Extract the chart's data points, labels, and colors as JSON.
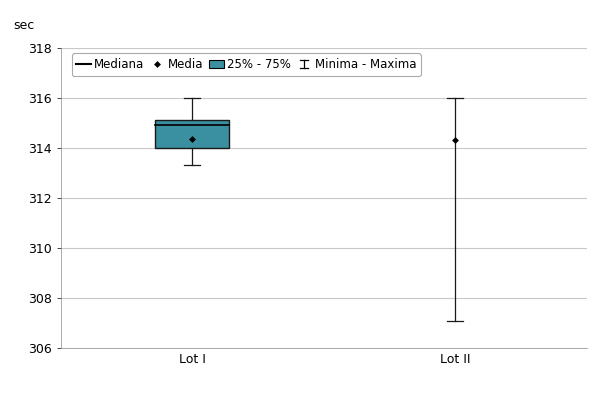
{
  "categories": [
    "Lot I",
    "Lot II"
  ],
  "lot1": {
    "q1": 314.0,
    "median": 314.9,
    "q3": 315.1,
    "mean": 314.35,
    "min": 313.3,
    "max": 316.0
  },
  "lot2": {
    "q1": 314.3,
    "median": 314.3,
    "q3": 314.3,
    "mean": 314.3,
    "min": 307.1,
    "max": 316.0
  },
  "ylim": [
    306,
    318
  ],
  "yticks": [
    306,
    308,
    310,
    312,
    314,
    316,
    318
  ],
  "box_color": "#3a8fa0",
  "box_edge_color": "#1a1a1a",
  "whisker_color": "#1a1a1a",
  "mean_color": "#000000",
  "ylabel": "sec",
  "background_color": "#ffffff",
  "grid_color": "#c8c8c8",
  "box_width": 0.28,
  "x_positions": [
    1,
    2
  ],
  "legend_items": [
    "Mediana",
    "Media",
    "25% - 75%",
    "Minima - Maxima"
  ],
  "figsize": [
    6.05,
    3.96
  ],
  "dpi": 100
}
